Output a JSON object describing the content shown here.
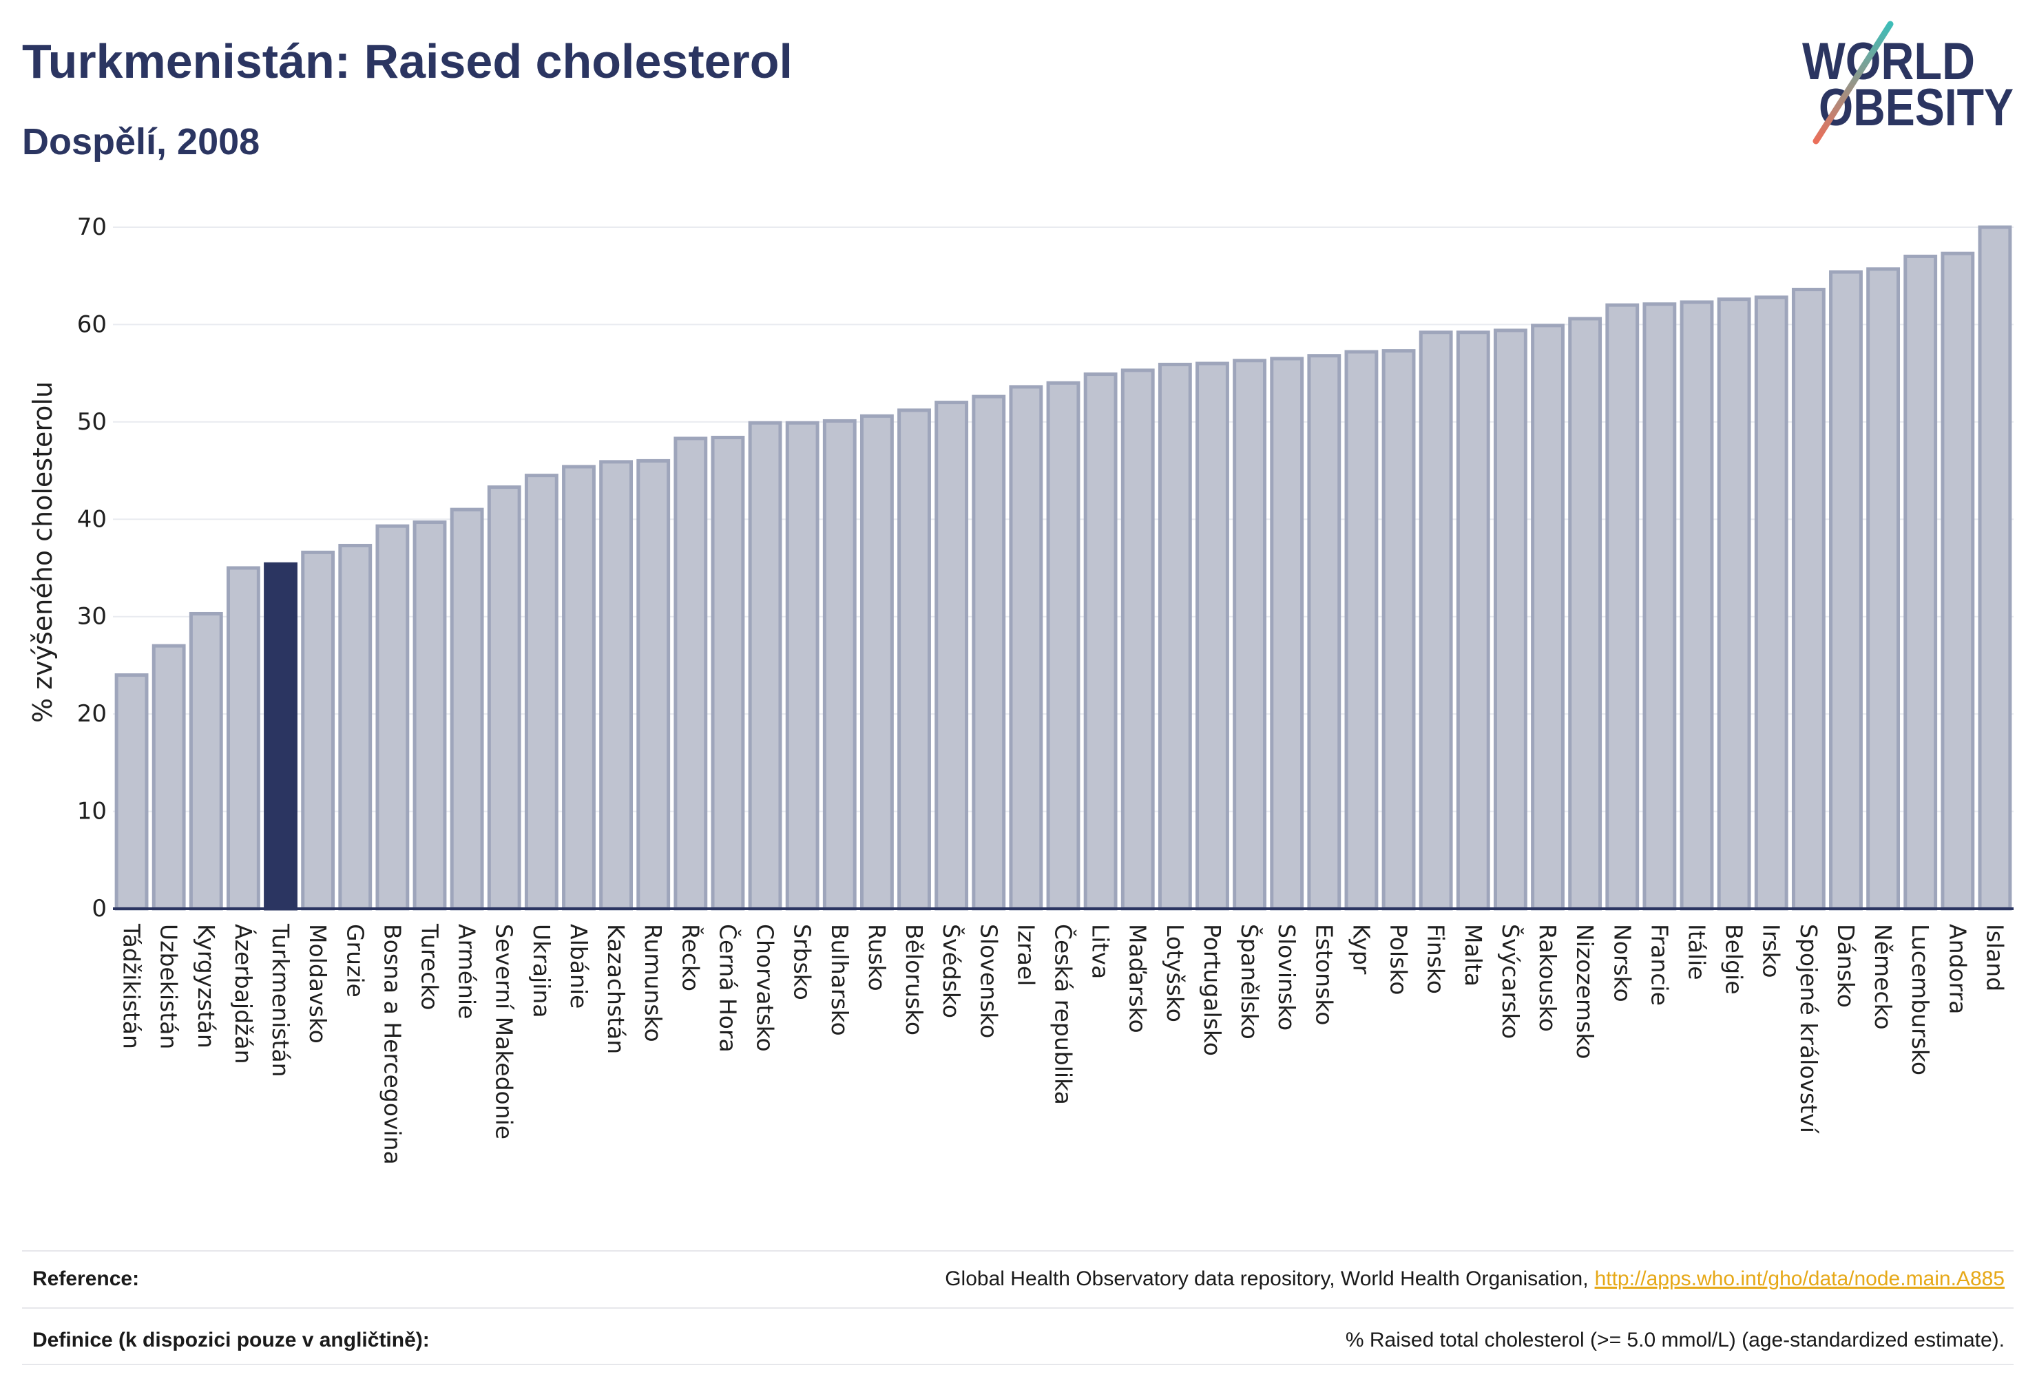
{
  "logo": {
    "line1": "WORLD",
    "line2": "OBESITY"
  },
  "colors": {
    "title": "#2b3561",
    "bar_fill": "#bfc3d0",
    "bar_stroke": "#9ea5bb",
    "highlight_fill": "#2b3561",
    "gridline": "#e9ebf0",
    "axis": "#2b3561",
    "link": "#e6a817",
    "logo_teal": "#3dbdb8",
    "logo_coral": "#ea6f5a"
  },
  "chart_data": {
    "type": "bar",
    "title": "Turkmenistán: Raised cholesterol",
    "subtitle": "Dospělí, 2008",
    "xlabel": "",
    "ylabel": "% zvýšeného cholesterolu",
    "ylim": [
      0,
      70
    ],
    "yticks": [
      0,
      10,
      20,
      30,
      40,
      50,
      60,
      70
    ],
    "grid": true,
    "highlight": "Turkmenistán",
    "categories": [
      "Tádžikistán",
      "Uzbekistán",
      "Kyrgyzstán",
      "Ázerbajdžán",
      "Turkmenistán",
      "Moldavsko",
      "Gruzie",
      "Bosna a Hercegovina",
      "Turecko",
      "Arménie",
      "Severní Makedonie",
      "Ukrajina",
      "Albánie",
      "Kazachstán",
      "Rumunsko",
      "Řecko",
      "Černá Hora",
      "Chorvatsko",
      "Srbsko",
      "Bulharsko",
      "Rusko",
      "Bělorusko",
      "Švédsko",
      "Slovensko",
      "Izrael",
      "Česká republika",
      "Litva",
      "Maďarsko",
      "Lotyšsko",
      "Portugalsko",
      "Španělsko",
      "Slovinsko",
      "Estonsko",
      "Kypr",
      "Polsko",
      "Finsko",
      "Malta",
      "Švýcarsko",
      "Rakousko",
      "Nizozemsko",
      "Norsko",
      "Francie",
      "Itálie",
      "Belgie",
      "Irsko",
      "Spojené království",
      "Dánsko",
      "Německo",
      "Lucembursko",
      "Andorra",
      "Island"
    ],
    "values": [
      24.0,
      27.0,
      30.3,
      35.0,
      35.4,
      36.6,
      37.3,
      39.3,
      39.7,
      41.0,
      43.3,
      44.5,
      45.4,
      45.9,
      46.0,
      48.3,
      48.4,
      49.9,
      49.9,
      50.1,
      50.6,
      51.2,
      52.0,
      52.6,
      53.6,
      54.0,
      54.9,
      55.3,
      55.9,
      56.0,
      56.3,
      56.5,
      56.8,
      57.2,
      57.3,
      59.2,
      59.2,
      59.4,
      59.9,
      60.6,
      62.0,
      62.1,
      62.3,
      62.6,
      62.8,
      63.6,
      65.4,
      65.7,
      67.0,
      67.3,
      70.0
    ]
  },
  "footer": {
    "reference_label": "Reference:",
    "reference_text": "Global Health Observatory data repository, World Health Organisation,",
    "reference_link": "http://apps.who.int/gho/data/node.main.A885",
    "definition_label": "Definice (k dispozici pouze v angličtině):",
    "definition_text": "% Raised total cholesterol (>= 5.0 mmol/L) (age-standardized estimate)."
  }
}
